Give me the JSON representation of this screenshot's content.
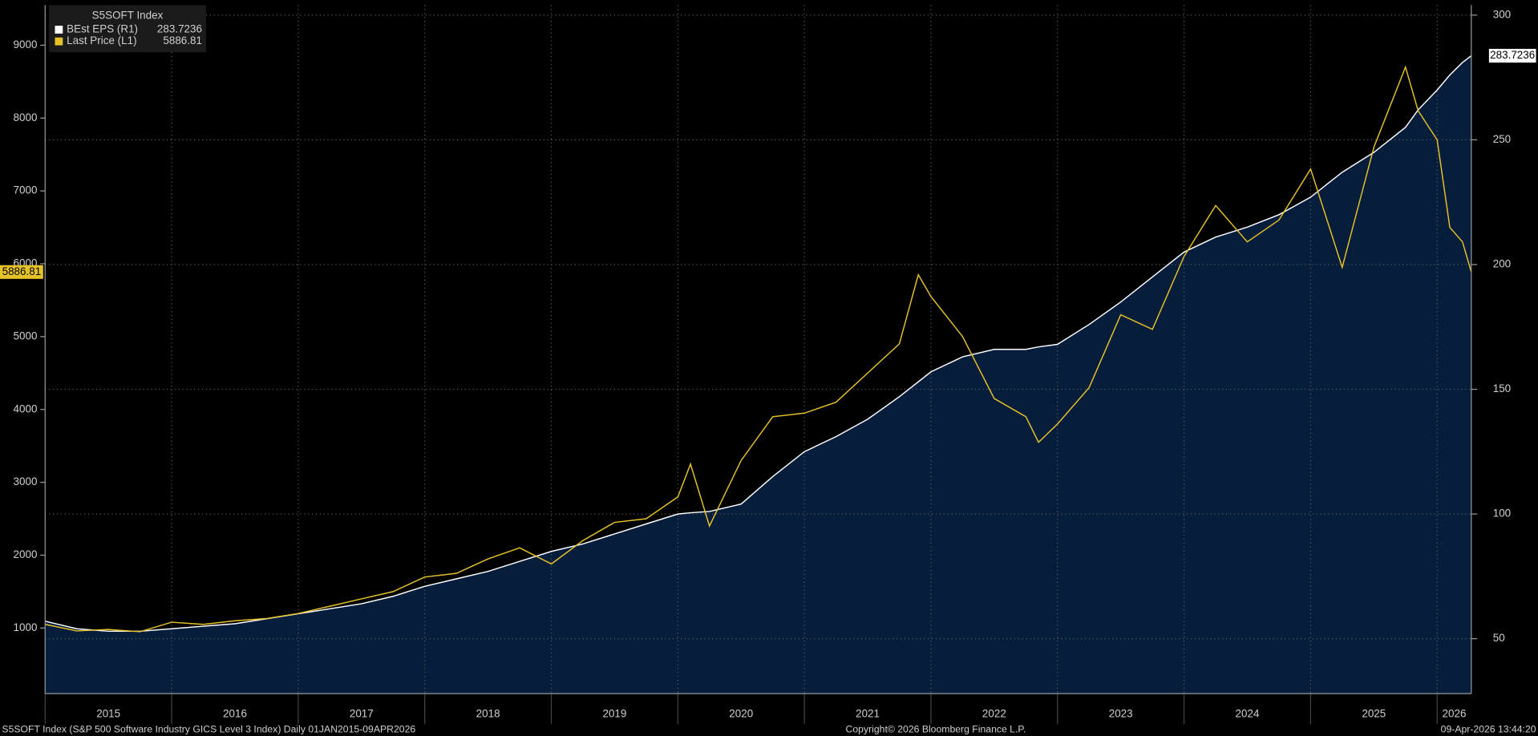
{
  "chart_data": {
    "type": "line",
    "legend_title": "S5SOFT Index",
    "footer_left": "S5SOFT Index (S&P 500 Software Industry GICS Level 3 Index) Daily 01JAN2015-09APR2026",
    "footer_center": "Copyright© 2026 Bloomberg Finance L.P.",
    "footer_right": "09-Apr-2026 13:44:20",
    "x": [
      2015,
      2015.25,
      2015.5,
      2015.75,
      2016,
      2016.25,
      2016.5,
      2016.75,
      2017,
      2017.25,
      2017.5,
      2017.75,
      2018,
      2018.25,
      2018.5,
      2018.75,
      2019,
      2019.25,
      2019.5,
      2019.75,
      2020,
      2020.1,
      2020.25,
      2020.5,
      2020.75,
      2021,
      2021.25,
      2021.5,
      2021.75,
      2021.9,
      2022,
      2022.25,
      2022.5,
      2022.75,
      2022.85,
      2023,
      2023.25,
      2023.5,
      2023.75,
      2024,
      2024.25,
      2024.5,
      2024.75,
      2025,
      2025.25,
      2025.5,
      2025.75,
      2025.85,
      2026,
      2026.1,
      2026.2,
      2026.27
    ],
    "xlim": [
      2015,
      2026.27
    ],
    "xticks": [
      2015,
      2016,
      2017,
      2018,
      2019,
      2020,
      2021,
      2022,
      2023,
      2024,
      2025,
      2026
    ],
    "ylim": [
      100,
      9550
    ],
    "yticks": [
      1000,
      2000,
      3000,
      4000,
      5000,
      6000,
      7000,
      8000,
      9000
    ],
    "y2lim": [
      28,
      304
    ],
    "y2ticks": [
      50,
      100,
      150,
      200,
      250,
      300
    ],
    "grid": true,
    "area_color": "#061d3b",
    "series": [
      {
        "name": "BEst EPS  (R1)",
        "color": "#ffffff",
        "axis": "y2",
        "fill": true,
        "values": [
          57,
          54,
          53,
          53,
          54,
          55,
          56,
          58,
          60,
          62,
          64,
          67,
          71,
          74,
          77,
          81,
          85,
          88,
          92,
          96,
          100,
          100.5,
          101,
          104,
          115,
          125,
          131,
          138,
          147,
          153,
          157,
          163,
          166,
          166,
          167,
          168,
          176,
          185,
          195,
          205,
          211,
          215,
          220,
          227,
          237,
          245,
          255,
          262,
          270,
          276,
          281,
          283.7236
        ]
      },
      {
        "name": "Last Price  (L1)",
        "color": "#e6c229",
        "axis": "y",
        "values": [
          1050,
          960,
          980,
          950,
          1080,
          1050,
          1100,
          1130,
          1200,
          1300,
          1400,
          1500,
          1700,
          1750,
          1950,
          2100,
          1880,
          2200,
          2450,
          2500,
          2800,
          3250,
          2400,
          3300,
          3900,
          3950,
          4100,
          4500,
          4900,
          5850,
          5550,
          5000,
          4150,
          3900,
          3550,
          3800,
          4300,
          5300,
          5100,
          6100,
          6800,
          6300,
          6600,
          7300,
          5950,
          7600,
          8700,
          8100,
          7700,
          6500,
          6300,
          5886.81
        ]
      }
    ]
  }
}
